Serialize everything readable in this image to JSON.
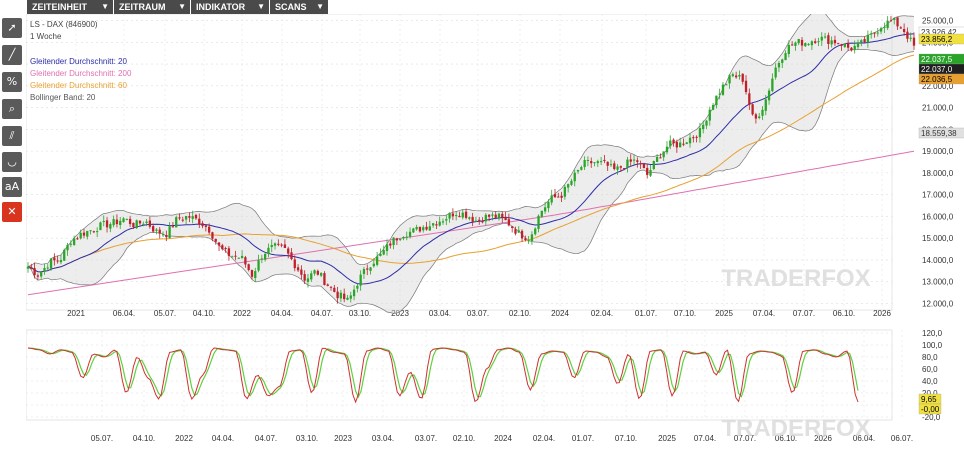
{
  "menu": {
    "zeiteinheit": "ZEITEINHEIT",
    "zeitraum": "ZEITRAUM",
    "indikator": "INDIKATOR",
    "scans": "SCANS"
  },
  "toolbar": [
    {
      "name": "cursor-tool",
      "glyph": "➚"
    },
    {
      "name": "line-tool",
      "glyph": "╱"
    },
    {
      "name": "percent-tool",
      "glyph": "%"
    },
    {
      "name": "zoom-tool",
      "glyph": "⌕"
    },
    {
      "name": "channel-tool",
      "glyph": "⫽"
    },
    {
      "name": "arc-tool",
      "glyph": "◡"
    },
    {
      "name": "text-tool",
      "glyph": "aA"
    },
    {
      "name": "delete-tool",
      "glyph": "✕"
    }
  ],
  "legend": {
    "instrument": "LS - DAX (846900)",
    "period": "1 Woche",
    "ma20": "Gleitender Durchschnitt: 20",
    "ma200": "Gleitender Durchschnitt: 200",
    "ma60": "Gleitender Durchschnitt: 60",
    "bollinger": "Bollinger Band: 20"
  },
  "watermark": "TRADERFOX",
  "colors": {
    "up": "#2aa52a",
    "down": "#c0202a",
    "ma20": "#2c2ca8",
    "ma60": "#e8a030",
    "ma200": "#e070b0",
    "bollinger": "#777777",
    "stoch_k": "#d03030",
    "stoch_d": "#60d040"
  },
  "chart_data": [
    {
      "type": "candlestick",
      "x_ticks": [
        "2021",
        "06.04.",
        "05.07.",
        "04.10.",
        "2022",
        "04.04.",
        "04.07.",
        "03.10.",
        "2023",
        "03.04.",
        "03.07.",
        "02.10.",
        "2024",
        "02.04.",
        "01.07.",
        "07.10.",
        "2025",
        "07.04.",
        "07.07.",
        "06.10.",
        "2026"
      ],
      "y_ticks": [
        "25.000,0",
        "24.000,0",
        "23.000,0",
        "22.000,0",
        "21.000,0",
        "20.000,0",
        "19.000,0",
        "18.000,0",
        "17.000,0",
        "16.000,0",
        "15.000,0",
        "14.000,0",
        "13.000,0",
        "12.000,0"
      ],
      "ylim": [
        11700,
        25300
      ],
      "close_path": [
        13700,
        13300,
        13900,
        14000,
        14900,
        15200,
        15400,
        15600,
        15700,
        15900,
        15600,
        15800,
        15300,
        15200,
        15900,
        16000,
        15800,
        15400,
        14500,
        14200,
        14100,
        13300,
        14300,
        14600,
        14500,
        13800,
        13100,
        13500,
        12900,
        12400,
        12100,
        13100,
        13800,
        14200,
        14800,
        15200,
        15300,
        15500,
        15700,
        15900,
        16200,
        16100,
        15800,
        16000,
        16000,
        15700,
        15200,
        15000,
        16200,
        16800,
        17000,
        17700,
        18400,
        18500,
        18400,
        18100,
        18400,
        18600,
        17900,
        18700,
        19300,
        19300,
        19600,
        19900,
        21100,
        21900,
        22500,
        22300,
        20300,
        21200,
        22800,
        23700,
        24000,
        24000,
        24200,
        24100,
        24000,
        23700,
        23900,
        24300,
        24800,
        25000,
        24600,
        23800
      ],
      "price_labels": [
        "23.926,42",
        "23.856,2",
        "22.037,5",
        "22.037,0",
        "22.036,5",
        "18.559,38"
      ],
      "series": [
        {
          "name": "Gleitender Durchschnitt: 20"
        },
        {
          "name": "Gleitender Durchschnitt: 200"
        },
        {
          "name": "Gleitender Durchschnitt: 60"
        },
        {
          "name": "Bollinger Band: 20"
        }
      ]
    },
    {
      "type": "line",
      "x_ticks": [
        "05.07.",
        "04.10.",
        "2022",
        "04.04.",
        "04.07.",
        "03.10.",
        "2023",
        "03.04.",
        "03.07.",
        "02.10.",
        "2024",
        "02.04.",
        "01.07.",
        "07.10.",
        "2025",
        "07.04.",
        "07.07.",
        "06.10.",
        "2026",
        "06.04.",
        "06.07."
      ],
      "y_ticks": [
        "120,0",
        "100,0",
        "80,0",
        "60,0",
        "40,0",
        "20,0",
        "0,0",
        "-20,0"
      ],
      "ylim": [
        -25,
        125
      ],
      "k_path": [
        95,
        92,
        85,
        92,
        88,
        45,
        85,
        80,
        92,
        20,
        80,
        45,
        10,
        88,
        92,
        10,
        50,
        95,
        92,
        90,
        10,
        50,
        15,
        30,
        90,
        92,
        20,
        95,
        88,
        85,
        5,
        90,
        95,
        90,
        15,
        55,
        10,
        93,
        95,
        92,
        88,
        5,
        60,
        92,
        95,
        88,
        25,
        85,
        90,
        88,
        45,
        90,
        88,
        80,
        35,
        85,
        10,
        90,
        92,
        15,
        90,
        85,
        88,
        50,
        92,
        5,
        85,
        90,
        88,
        82,
        20,
        90,
        92,
        85,
        80,
        90,
        5
      ],
      "price_labels": [
        "9,65",
        "-0,00"
      ]
    }
  ]
}
